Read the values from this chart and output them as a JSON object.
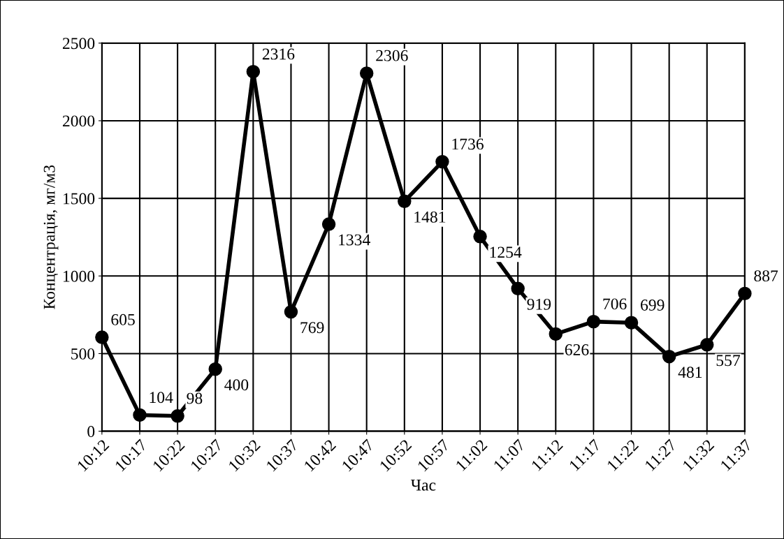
{
  "chart_data": {
    "type": "line",
    "xlabel": "Час",
    "ylabel": "Концентрація, мг/м3",
    "categories": [
      "10:12",
      "10:17",
      "10:22",
      "10:27",
      "10:32",
      "10:37",
      "10:42",
      "10:47",
      "10:52",
      "10:57",
      "11:02",
      "11:07",
      "11:12",
      "11:17",
      "11:22",
      "11:27",
      "11:32",
      "11:37"
    ],
    "series": [
      {
        "color": "#000000",
        "values": [
          605,
          104,
          98,
          400,
          2316,
          769,
          1334,
          2306,
          1481,
          1736,
          1254,
          919,
          626,
          706,
          699,
          481,
          557,
          887
        ]
      }
    ],
    "ylim": [
      0,
      2500
    ],
    "yticks": [
      0,
      500,
      1000,
      1500,
      2000,
      2500
    ],
    "grid": true,
    "marker": "circle",
    "line_style": "solid",
    "data_labels": true,
    "legend": false
  }
}
